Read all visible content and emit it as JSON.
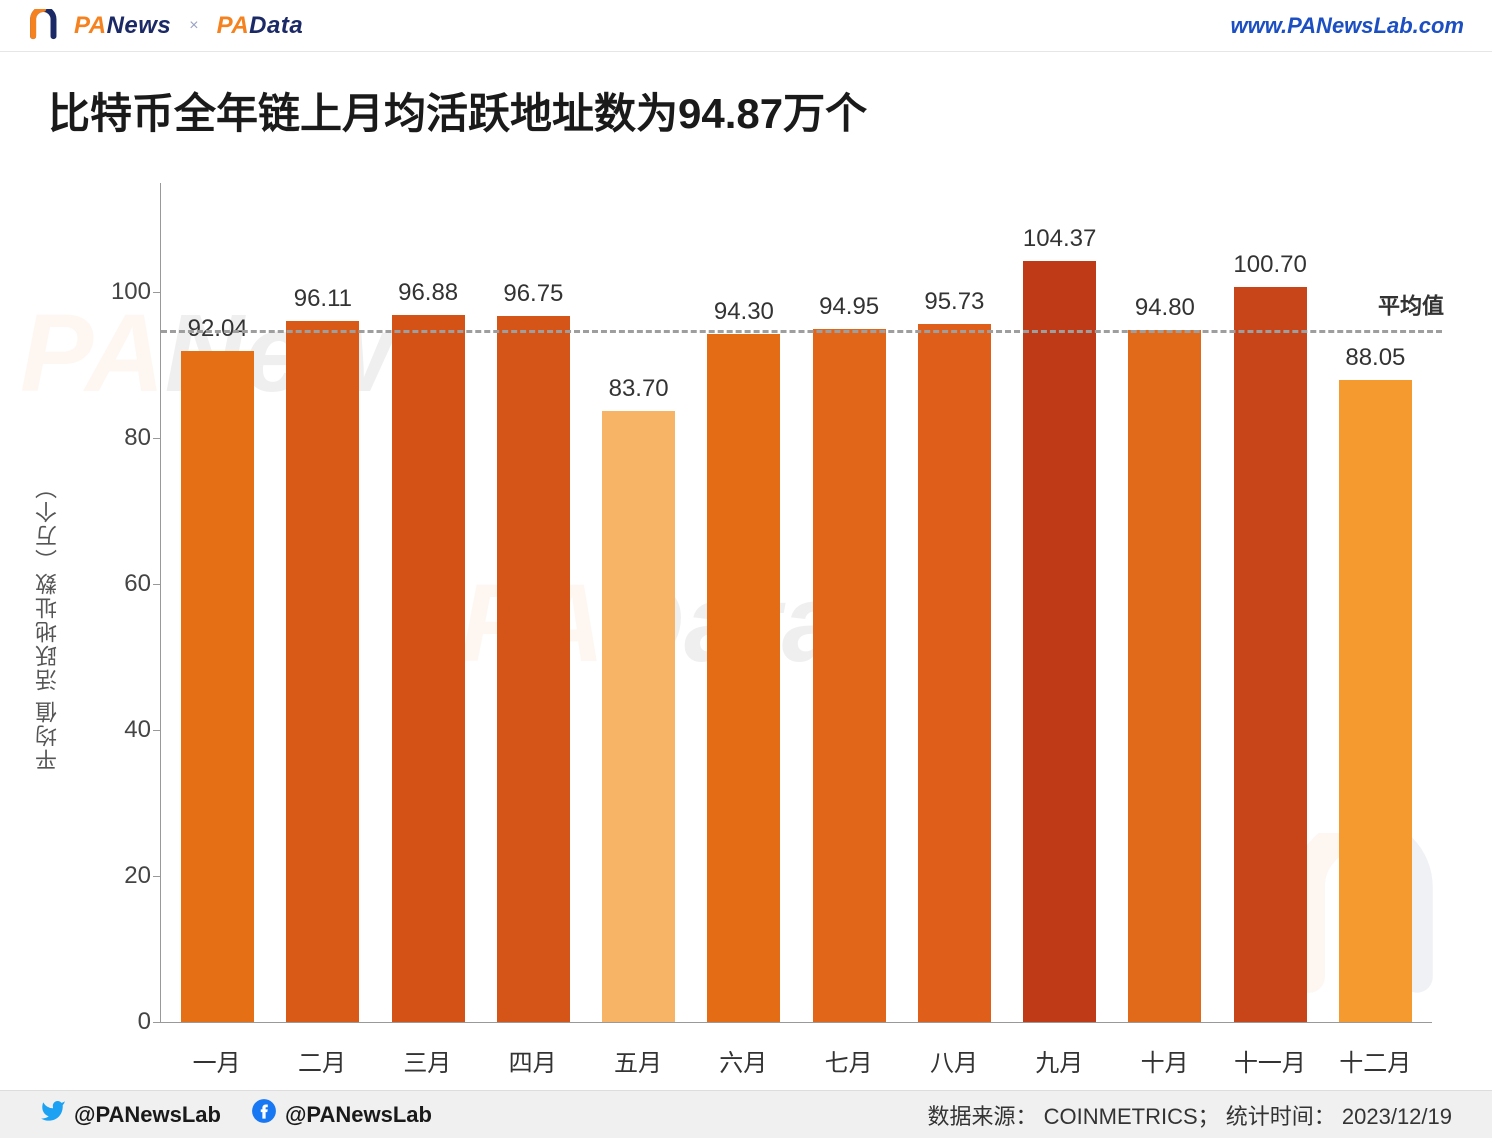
{
  "header": {
    "brand_panews": "PANews",
    "brand_padata": "PAData",
    "site_url": "www.PANewsLab.com",
    "brand_colors": {
      "pa": "#f5821f",
      "text": "#1b2a66",
      "url": "#1b4fc2"
    }
  },
  "title": "比特币全年链上月均活跃地址数为94.87万个",
  "chart": {
    "type": "bar",
    "ylabel": "平均值 活跃地址数（万个）",
    "ylim": [
      0,
      115
    ],
    "ytick_step": 20,
    "yticks": [
      0,
      20,
      40,
      60,
      80,
      100
    ],
    "avg_value": 94.87,
    "avg_label": "平均值",
    "avg_line_color": "#9e9e9e",
    "categories": [
      "一月",
      "二月",
      "三月",
      "四月",
      "五月",
      "六月",
      "七月",
      "八月",
      "九月",
      "十月",
      "十一月",
      "十二月"
    ],
    "values": [
      92.04,
      96.11,
      96.88,
      96.75,
      83.7,
      94.3,
      94.95,
      95.73,
      104.37,
      94.8,
      100.7,
      88.05
    ],
    "value_labels": [
      "92.04",
      "96.11",
      "96.88",
      "96.75",
      "83.70",
      "94.30",
      "94.95",
      "95.73",
      "104.37",
      "94.80",
      "100.70",
      "88.05"
    ],
    "bar_colors": [
      "#e46f15",
      "#d85a16",
      "#d55217",
      "#d55418",
      "#f7b466",
      "#e46c15",
      "#e1661a",
      "#df5f1a",
      "#bf3b17",
      "#e16a1a",
      "#c8451a",
      "#f49a2f"
    ],
    "axis_color": "#999999",
    "tick_fontsize": 24,
    "label_fontsize": 22,
    "value_fontsize": 24,
    "background_color": "#ffffff",
    "bar_width": 0.82
  },
  "footer": {
    "social_handle": "@PANewsLab",
    "source_label": "数据来源：",
    "source_value": "COINMETRICS",
    "time_label": "统计时间：",
    "time_value": "2023/12/19"
  },
  "watermarks": {
    "wm1": "PANews",
    "wm2": "PAData"
  }
}
